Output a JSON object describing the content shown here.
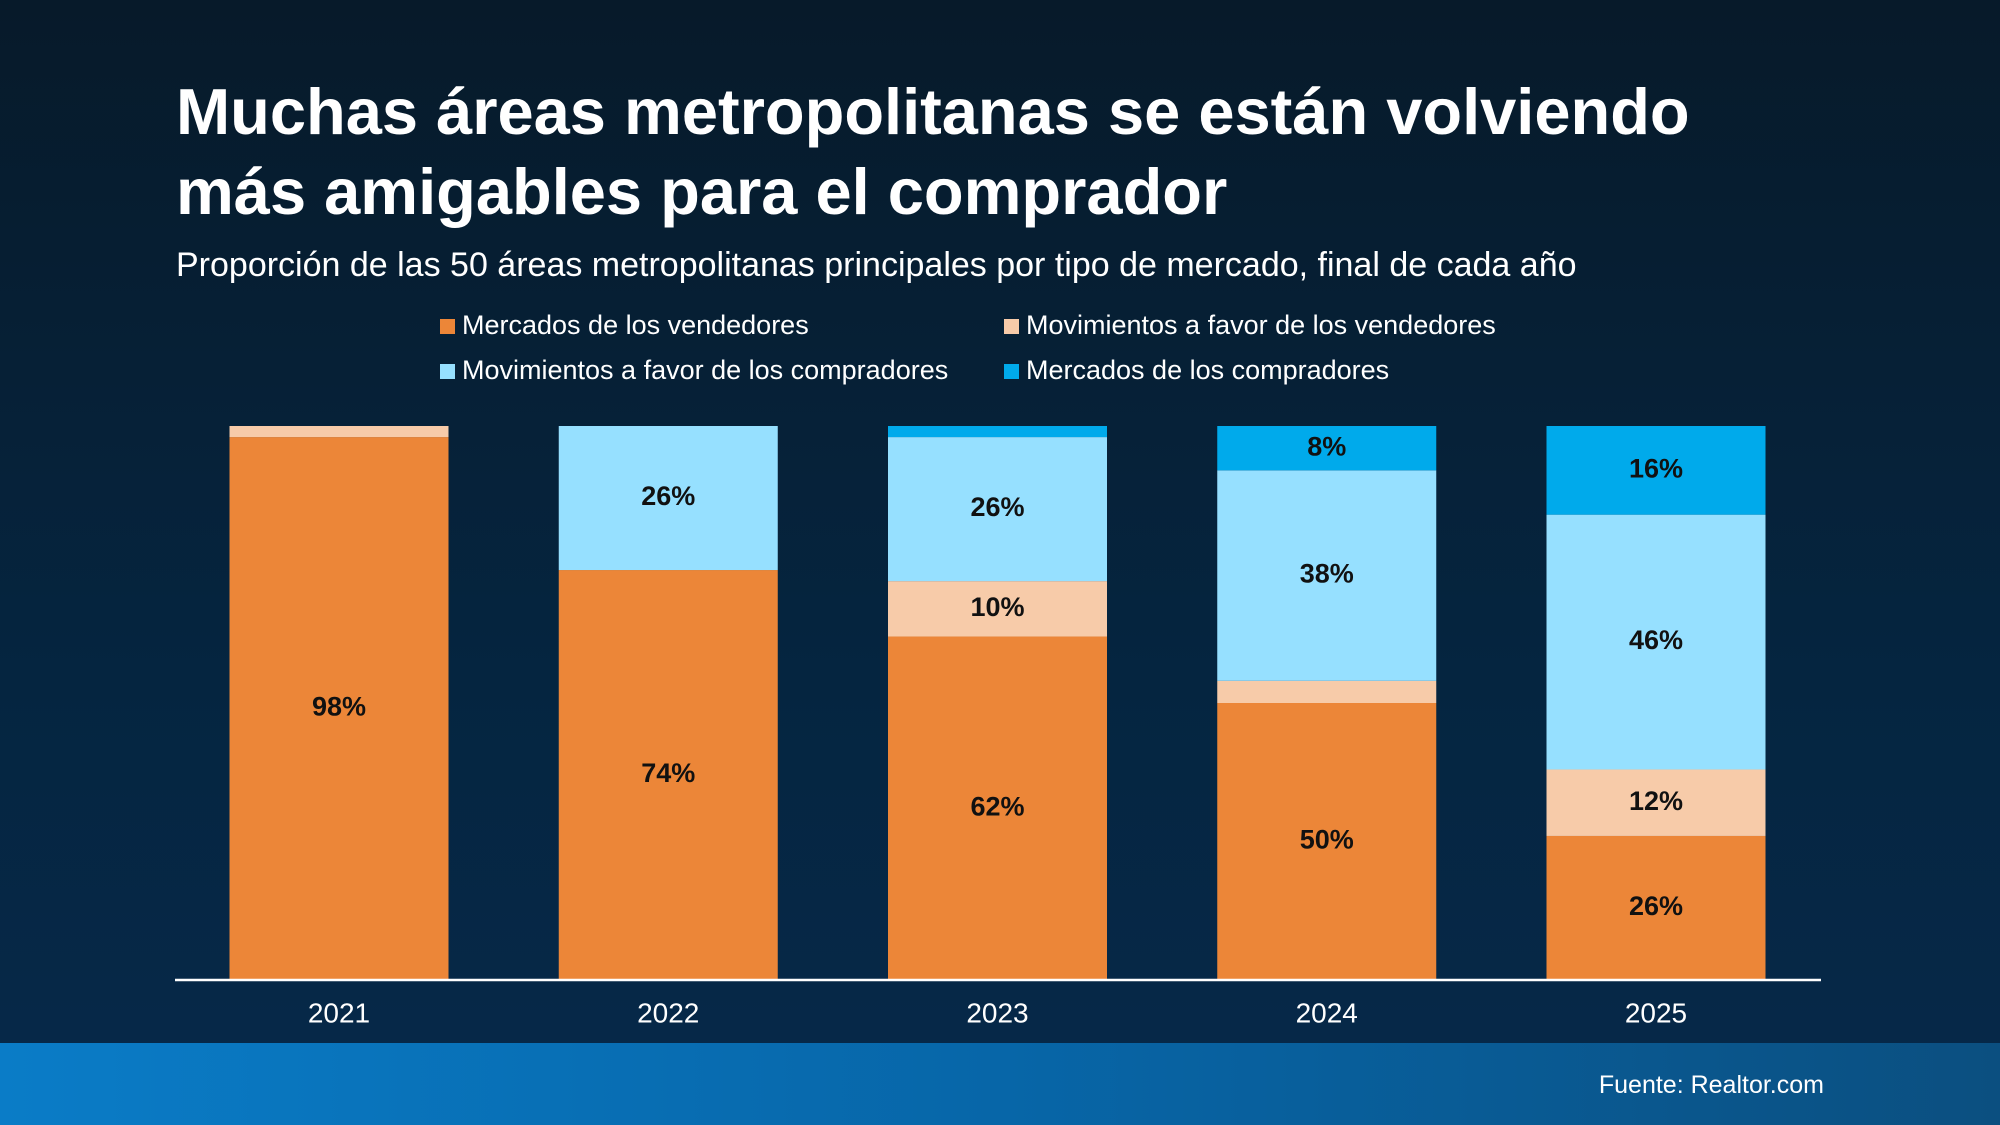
{
  "chart_data": {
    "type": "stacked_bar",
    "title": "Muchas áreas metropolitanas se están volviendo más amigables para el comprador",
    "subtitle": "Proporción de las 50 áreas metropolitanas principales por tipo de mercado, final de cada año",
    "source": "Fuente: Realtor.com",
    "categories": [
      "2021",
      "2022",
      "2023",
      "2024",
      "2025"
    ],
    "ylim": [
      0,
      100
    ],
    "series": [
      {
        "name": "Mercados de los vendedores",
        "color": "#ec8638",
        "values": [
          98,
          74,
          62,
          50,
          26
        ],
        "value_labels": [
          "98%",
          "74%",
          "62%",
          "50%",
          "26%"
        ]
      },
      {
        "name": "Movimientos a favor de los vendedores",
        "color": "#f7cba9",
        "values": [
          2,
          0,
          10,
          4,
          12
        ],
        "value_labels": [
          null,
          null,
          "10%",
          null,
          "12%"
        ]
      },
      {
        "name": "Movimientos a favor de los compradores",
        "color": "#96e0ff",
        "values": [
          0,
          26,
          26,
          38,
          46
        ],
        "value_labels": [
          null,
          "26%",
          "26%",
          "38%",
          "46%"
        ]
      },
      {
        "name": "Mercados de los compradores",
        "color": "#00aaeb",
        "values": [
          0,
          0,
          2,
          8,
          16
        ],
        "value_labels": [
          null,
          null,
          null,
          "8%",
          "16%"
        ]
      }
    ]
  }
}
